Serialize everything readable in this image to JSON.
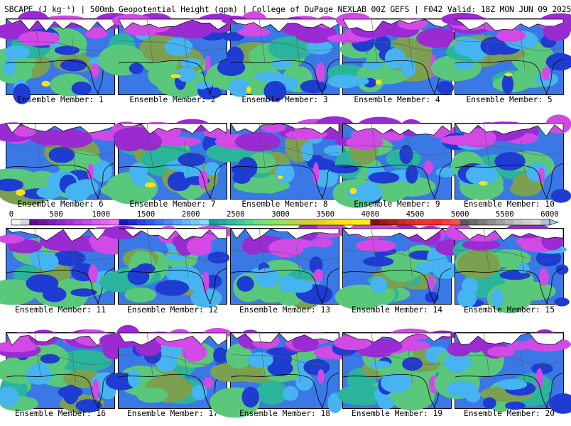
{
  "title": "SBCAPE (J kg⁻¹) | 500mb Geopotential Height (gpm) | College of DuPage NEXLAB 00Z GEFS | F042 Valid: 18Z MON JUN 09 2025",
  "colorbar": {
    "labels": [
      "0",
      "500",
      "1000",
      "1500",
      "2000",
      "2500",
      "3000",
      "3500",
      "4000",
      "4500",
      "5000",
      "5500",
      "6000"
    ],
    "min": 0,
    "max": 6000,
    "colors": [
      "#f4f4f4",
      "#d8d8d8",
      "#5a0a8c",
      "#6a14a0",
      "#7c1eb6",
      "#8e28c8",
      "#a032d8",
      "#b43ee6",
      "#c84af0",
      "#dc56f6",
      "#ee62fa",
      "#fa72fc",
      "#1414c8",
      "#1e28d6",
      "#2a40e2",
      "#3658ee",
      "#4270f6",
      "#4e88fa",
      "#5aa0fc",
      "#66b8fe",
      "#74ccfe",
      "#82dcfe",
      "#10a0a0",
      "#1cb0a0",
      "#2cbe9c",
      "#3ccc94",
      "#50d88a",
      "#66e280",
      "#7ae672",
      "#8ee464",
      "#a2de56",
      "#b4d64a",
      "#c8d040",
      "#d8cc36",
      "#e8d02c",
      "#f4d822",
      "#fce01a",
      "#fee614",
      "#ffec10",
      "#fff00c",
      "#801010",
      "#961818",
      "#ac2020",
      "#c42828",
      "#da2e2e",
      "#ee3030",
      "#f83030",
      "#ff2828",
      "#ff3c3c",
      "#ff5050",
      "#585858",
      "#6a6a6a",
      "#7c7c7c",
      "#8e8e8e",
      "#a0a0a0",
      "#b2b2b2",
      "#c4c4c4",
      "#d0d0d0",
      "#dadada",
      "#a6c4dc"
    ]
  },
  "members": [
    "Ensemble Member: 1",
    "Ensemble Member: 2",
    "Ensemble Member: 3",
    "Ensemble Member: 4",
    "Ensemble Member: 5",
    "Ensemble Member: 6",
    "Ensemble Member: 7",
    "Ensemble Member: 8",
    "Ensemble Member: 9",
    "Ensemble Member: 10",
    "Ensemble Member: 11",
    "Ensemble Member: 12",
    "Ensemble Member: 13",
    "Ensemble Member: 14",
    "Ensemble Member: 15",
    "Ensemble Member: 16",
    "Ensemble Member: 17",
    "Ensemble Member: 18",
    "Ensemble Member: 19",
    "Ensemble Member: 20"
  ],
  "map_palette": {
    "ocean_fill": "#3a78e6",
    "deep_blue": "#1e3cd2",
    "cyan": "#46b4f0",
    "teal": "#2ab49c",
    "green": "#5ac87a",
    "olive": "#7aa050",
    "magenta": "#d24ae6",
    "purple": "#9a2ad2",
    "yellow": "#f4e01e",
    "no_data": "#ffffff",
    "outline": "#000000",
    "border_line": "#5a5a5a"
  }
}
